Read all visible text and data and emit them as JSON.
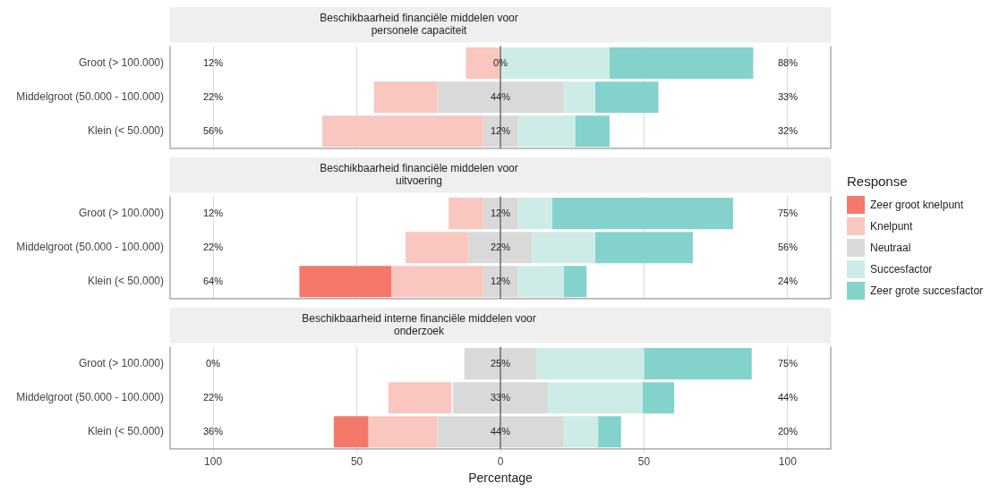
{
  "chart_data": [
    {
      "type": "bar",
      "orientation": "horizontal",
      "title": "Beschikbaarheid financiële middelen voor\npersonele capaciteit",
      "categories": [
        "Groot (> 100.000)",
        "Middelgroot (50.000 - 100.000)",
        "Klein (< 50.000)"
      ],
      "series": [
        {
          "color": "#f5796b",
          "base": [
            null,
            null,
            null
          ],
          "values": [
            null,
            null,
            null
          ]
        },
        {
          "color": "#f9c6c0",
          "base": [
            -12,
            -44,
            -62
          ],
          "values": [
            12,
            22,
            56
          ]
        },
        {
          "color": "#d9d9d9",
          "base": [
            null,
            -22,
            -6
          ],
          "values": [
            0,
            44,
            12
          ],
          "value_labels": [
            "0%",
            "44%",
            "12%"
          ]
        },
        {
          "color": "#cdece8",
          "base": [
            0,
            22,
            6
          ],
          "values": [
            38,
            11,
            20
          ]
        },
        {
          "color": "#83d3cc",
          "base": [
            38,
            33,
            26
          ],
          "values": [
            50,
            22,
            12
          ]
        }
      ],
      "xlim": [
        -115,
        115
      ],
      "xticks": [
        {
          "value": -100,
          "label": null
        },
        {
          "value": -50,
          "label": null
        },
        {
          "value": 0,
          "label": null
        },
        {
          "value": 50,
          "label": null
        },
        {
          "value": 100,
          "label": null
        }
      ],
      "tick_labels": "y",
      "grid": "x",
      "legend": false,
      "ref_lines": [
        {
          "axis": "x",
          "value": 0,
          "color": "#333333"
        }
      ],
      "annotations": [
        "12%",
        "22%",
        "56%",
        "88%",
        "33%",
        "32%"
      ]
    },
    {
      "type": "bar",
      "orientation": "horizontal",
      "title": "Beschikbaarheid financiële middelen voor\nuitvoering",
      "categories": [
        "Groot (> 100.000)",
        "Middelgroot (50.000 - 100.000)",
        "Klein (< 50.000)"
      ],
      "series": [
        {
          "name": "Zeer groot knelpunt",
          "color": "#f5796b",
          "base": [
            null,
            null,
            -70
          ],
          "values": [
            null,
            null,
            32
          ]
        },
        {
          "name": "Knelpunt",
          "color": "#f9c6c0",
          "base": [
            -18,
            -33,
            -38
          ],
          "values": [
            12,
            22,
            32
          ]
        },
        {
          "name": "Neutraal",
          "color": "#d9d9d9",
          "base": [
            -6,
            -11,
            -6
          ],
          "values": [
            12,
            22,
            12
          ],
          "value_labels": [
            "12%",
            "22%",
            "12%"
          ]
        },
        {
          "name": "Succesfactor",
          "color": "#cdece8",
          "base": [
            6,
            11,
            6
          ],
          "values": [
            12,
            22,
            16
          ]
        },
        {
          "name": "Zeer grote succesfactor",
          "color": "#83d3cc",
          "base": [
            18,
            33,
            22
          ],
          "values": [
            63,
            34,
            8
          ]
        }
      ],
      "xlim": [
        -115,
        115
      ],
      "xticks": [
        {
          "value": -100,
          "label": null
        },
        {
          "value": -50,
          "label": null
        },
        {
          "value": 0,
          "label": null
        },
        {
          "value": 50,
          "label": null
        },
        {
          "value": 100,
          "label": null
        }
      ],
      "tick_labels": "y",
      "grid": "x",
      "legend": "right",
      "legend_title": "Response",
      "ref_lines": [
        {
          "axis": "x",
          "value": 0,
          "color": "#333333"
        }
      ],
      "annotations": [
        "12%",
        "22%",
        "64%",
        "75%",
        "56%",
        "24%"
      ]
    },
    {
      "type": "bar",
      "orientation": "horizontal",
      "title": "Beschikbaarheid interne financiële middelen voor\nonderzoek",
      "categories": [
        "Groot (> 100.000)",
        "Middelgroot (50.000 - 100.000)",
        "Klein (< 50.000)"
      ],
      "series": [
        {
          "color": "#f5796b",
          "base": [
            null,
            null,
            -58
          ],
          "values": [
            null,
            null,
            12
          ]
        },
        {
          "color": "#f9c6c0",
          "base": [
            null,
            -39,
            -46
          ],
          "values": [
            null,
            22,
            24
          ]
        },
        {
          "color": "#d9d9d9",
          "base": [
            -12.5,
            -16.5,
            -22
          ],
          "values": [
            25,
            33,
            44
          ],
          "value_labels": [
            "25%",
            "33%",
            "44%"
          ]
        },
        {
          "color": "#cdece8",
          "base": [
            12.5,
            16.5,
            22
          ],
          "values": [
            37.5,
            33,
            12
          ]
        },
        {
          "color": "#83d3cc",
          "base": [
            50,
            49.5,
            34
          ],
          "values": [
            37.5,
            11,
            8
          ]
        }
      ],
      "xlim": [
        -115,
        115
      ],
      "xticks": [
        {
          "value": -100,
          "label": "100"
        },
        {
          "value": -50,
          "label": "50"
        },
        0,
        50,
        100
      ],
      "xlabel": "Percentage",
      "grid": "x",
      "legend": false,
      "ref_lines": [
        {
          "axis": "x",
          "value": 0,
          "color": "#333333"
        }
      ],
      "annotations": [
        "0%",
        "22%",
        "36%",
        "75%",
        "44%",
        "20%"
      ]
    }
  ]
}
